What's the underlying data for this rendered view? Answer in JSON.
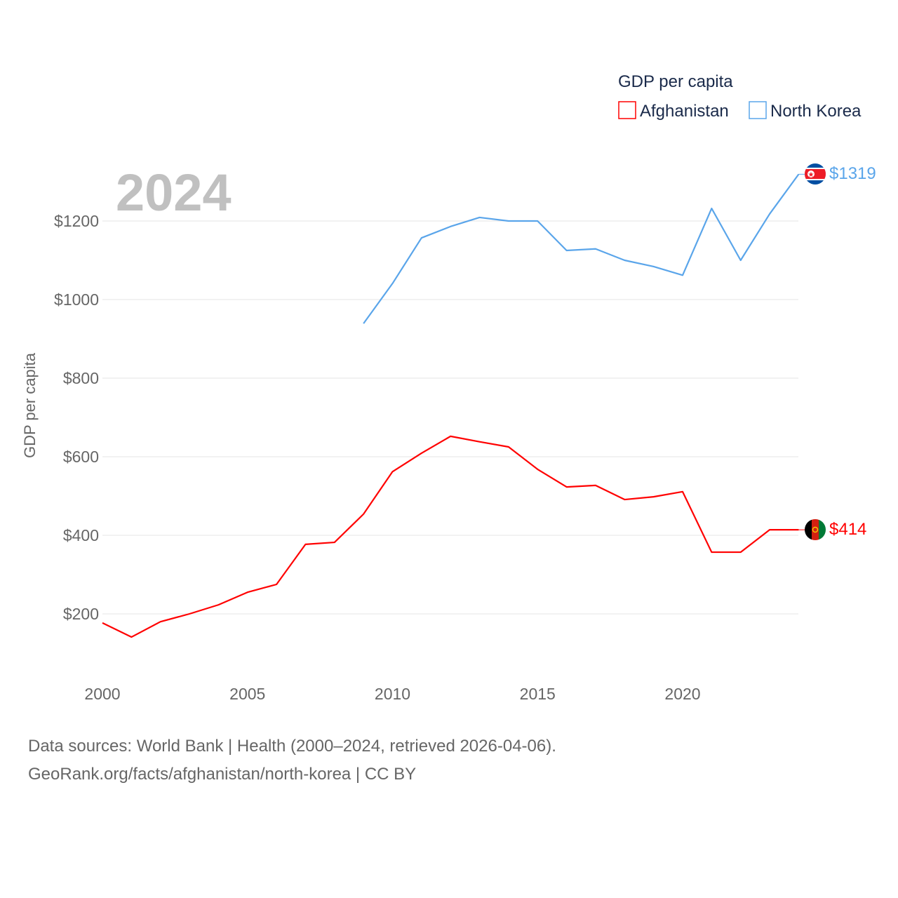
{
  "chart_data": {
    "type": "line",
    "year_label": "2024",
    "ylabel": "GDP per capita",
    "legend_title": "GDP per capita",
    "legend_placement": "top-right",
    "ylim": [
      100,
      1350
    ],
    "xlim": [
      2000,
      2024
    ],
    "y_ticks": [
      200,
      400,
      600,
      800,
      1000,
      1200
    ],
    "y_tick_labels": [
      "$200",
      "$400",
      "$600",
      "$800",
      "$1000",
      "$1200"
    ],
    "x_ticks": [
      2000,
      2005,
      2010,
      2015,
      2020
    ],
    "x_tick_labels": [
      "2000",
      "2005",
      "2010",
      "2015",
      "2020"
    ],
    "grid": true,
    "series": [
      {
        "name": "Afghanistan",
        "color": "#ff0000",
        "end_label": "$414",
        "x": [
          2000,
          2001,
          2002,
          2003,
          2004,
          2005,
          2006,
          2007,
          2008,
          2009,
          2010,
          2011,
          2012,
          2013,
          2014,
          2015,
          2016,
          2017,
          2018,
          2019,
          2020,
          2021,
          2022,
          2023,
          2024
        ],
        "values": [
          177,
          141,
          180,
          200,
          223,
          255,
          275,
          377,
          382,
          454,
          562,
          609,
          652,
          638,
          625,
          568,
          523,
          527,
          491,
          498,
          511,
          357,
          357,
          414,
          414
        ]
      },
      {
        "name": "North Korea",
        "color": "#5aa5ea",
        "end_label": "$1319",
        "x": [
          2009,
          2010,
          2011,
          2012,
          2013,
          2014,
          2015,
          2016,
          2017,
          2018,
          2019,
          2020,
          2021,
          2022,
          2023,
          2024
        ],
        "values": [
          939,
          1041,
          1157,
          1186,
          1209,
          1200,
          1200,
          1125,
          1129,
          1100,
          1084,
          1062,
          1232,
          1100,
          1218,
          1319
        ]
      }
    ]
  },
  "footer": {
    "line1": "Data sources: World Bank | Health (2000–2024, retrieved 2026-04-06).",
    "line2": "GeoRank.org/facts/afghanistan/north-korea | CC BY"
  }
}
